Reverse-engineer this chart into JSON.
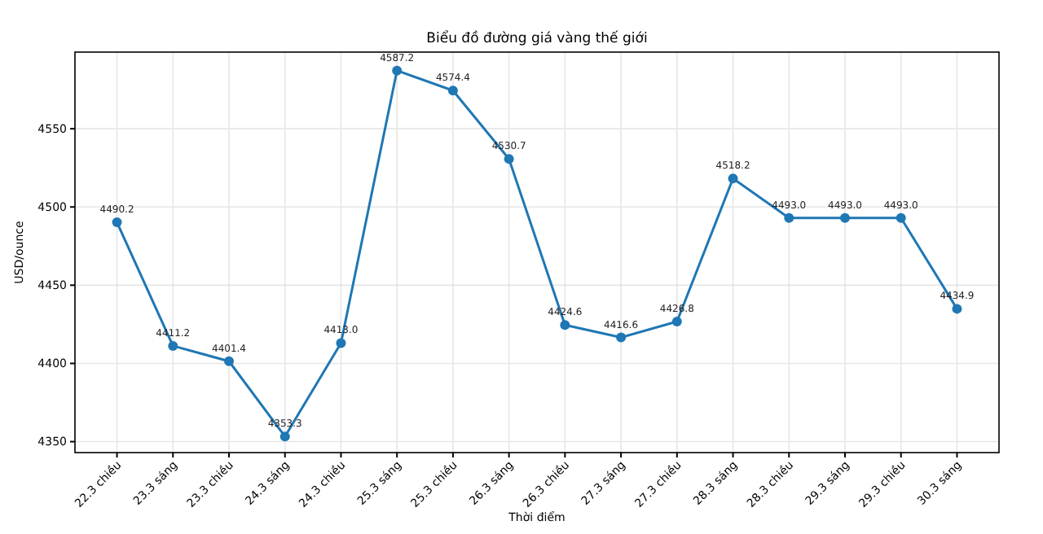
{
  "chart_data": {
    "type": "line",
    "title": "Biểu đồ đường giá vàng thế giới",
    "xlabel": "Thời điểm",
    "ylabel": "USD/ounce",
    "categories": [
      "22.3 chiều",
      "23.3 sáng",
      "23.3 chiều",
      "24.3 sáng",
      "24.3 chiều",
      "25.3 sáng",
      "25.3 chiều",
      "26.3 sáng",
      "26.3 chiều",
      "27.3 sáng",
      "27.3 chiều",
      "28.3 sáng",
      "28.3 chiều",
      "29.3 sáng",
      "29.3 chiều",
      "30.3 sáng"
    ],
    "series": [
      {
        "color": "#1f77b4",
        "values": [
          4490.2,
          4411.2,
          4401.4,
          4353.3,
          4413.0,
          4587.2,
          4574.4,
          4530.7,
          4424.6,
          4416.6,
          4426.8,
          4518.2,
          4493.0,
          4493.0,
          4493.0,
          4434.9
        ],
        "value_labels": [
          "4490.2",
          "4411.2",
          "4401.4",
          "4353.3",
          "4413.0",
          "4587.2",
          "4574.4",
          "4530.7",
          "4424.6",
          "4416.6",
          "4426.8",
          "4518.2",
          "4493.0",
          "4493.0",
          "4493.0",
          "4434.9"
        ]
      }
    ],
    "ylim": [
      4343,
      4599
    ],
    "yticks": [
      4350,
      4400,
      4450,
      4500,
      4550
    ],
    "grid": true,
    "marker": "circle",
    "line_style": "solid"
  }
}
